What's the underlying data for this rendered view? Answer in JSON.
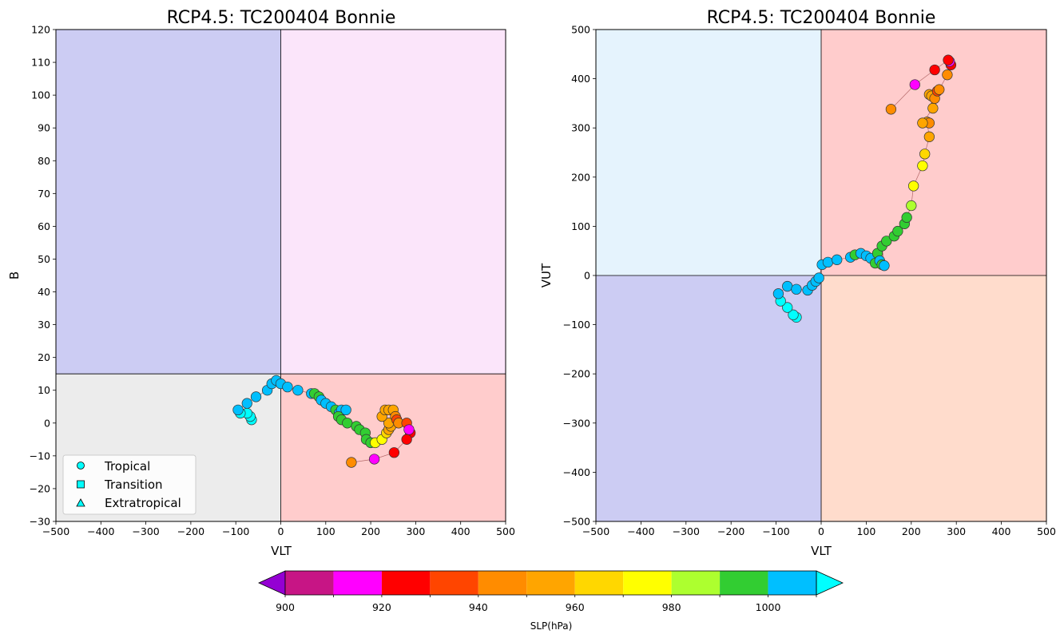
{
  "chart_data": [
    {
      "type": "scatter",
      "title": "RCP4.5: TC200404 Bonnie",
      "xlabel": "VLT",
      "ylabel": "B",
      "xlim": [
        -500,
        500
      ],
      "ylim": [
        -30,
        120
      ],
      "xticks": [
        "−500",
        "−400",
        "−300",
        "−200",
        "−100",
        "0",
        "100",
        "200",
        "300",
        "400",
        "500"
      ],
      "yticks": [
        "−30",
        "−20",
        "−10",
        "0",
        "10",
        "20",
        "30",
        "40",
        "50",
        "60",
        "70",
        "80",
        "90",
        "100",
        "110",
        "120"
      ],
      "threshold_y": 15,
      "quadrant_colors": {
        "upper_left": "#ccccf3",
        "upper_right": "#fbe5fa",
        "lower_left": "#ececec",
        "lower_right": "#ffcccc"
      },
      "legend": {
        "placement": "lower-left",
        "items": [
          {
            "label": "Tropical",
            "marker": "circle"
          },
          {
            "label": "Transition",
            "marker": "square"
          },
          {
            "label": "Extratropical",
            "marker": "triangle"
          }
        ]
      },
      "points": [
        {
          "x": -65,
          "y": 1,
          "slp": 1010
        },
        {
          "x": -68,
          "y": 2,
          "slp": 1010
        },
        {
          "x": -75,
          "y": 3,
          "slp": 1010
        },
        {
          "x": -90,
          "y": 3,
          "slp": 1010
        },
        {
          "x": -95,
          "y": 4,
          "slp": 1005
        },
        {
          "x": -75,
          "y": 6,
          "slp": 1005
        },
        {
          "x": -55,
          "y": 8,
          "slp": 1005
        },
        {
          "x": -30,
          "y": 10,
          "slp": 1005
        },
        {
          "x": -20,
          "y": 12,
          "slp": 1005
        },
        {
          "x": -10,
          "y": 13,
          "slp": 1005
        },
        {
          "x": 0,
          "y": 12,
          "slp": 1005
        },
        {
          "x": 15,
          "y": 11,
          "slp": 1005
        },
        {
          "x": 38,
          "y": 10,
          "slp": 1005
        },
        {
          "x": 68,
          "y": 9,
          "slp": 1005
        },
        {
          "x": 75,
          "y": 9,
          "slp": 995
        },
        {
          "x": 85,
          "y": 8,
          "slp": 995
        },
        {
          "x": 90,
          "y": 7,
          "slp": 1005
        },
        {
          "x": 100,
          "y": 6,
          "slp": 1005
        },
        {
          "x": 112,
          "y": 5,
          "slp": 1005
        },
        {
          "x": 122,
          "y": 4,
          "slp": 995
        },
        {
          "x": 130,
          "y": 3,
          "slp": 1005
        },
        {
          "x": 135,
          "y": 4,
          "slp": 1005
        },
        {
          "x": 145,
          "y": 4,
          "slp": 1005
        },
        {
          "x": 128,
          "y": 2,
          "slp": 995
        },
        {
          "x": 135,
          "y": 1,
          "slp": 995
        },
        {
          "x": 148,
          "y": 0,
          "slp": 995
        },
        {
          "x": 168,
          "y": -1,
          "slp": 995
        },
        {
          "x": 175,
          "y": -2,
          "slp": 995
        },
        {
          "x": 188,
          "y": -3,
          "slp": 995
        },
        {
          "x": 190,
          "y": -5,
          "slp": 995
        },
        {
          "x": 200,
          "y": -6,
          "slp": 995
        },
        {
          "x": 210,
          "y": -6,
          "slp": 975
        },
        {
          "x": 225,
          "y": -5,
          "slp": 975
        },
        {
          "x": 235,
          "y": -3,
          "slp": 965
        },
        {
          "x": 240,
          "y": -2,
          "slp": 955
        },
        {
          "x": 245,
          "y": -1,
          "slp": 955
        },
        {
          "x": 240,
          "y": 0,
          "slp": 955
        },
        {
          "x": 225,
          "y": 2,
          "slp": 955
        },
        {
          "x": 232,
          "y": 4,
          "slp": 955
        },
        {
          "x": 240,
          "y": 4,
          "slp": 955
        },
        {
          "x": 250,
          "y": 4,
          "slp": 955
        },
        {
          "x": 255,
          "y": 2,
          "slp": 945
        },
        {
          "x": 258,
          "y": 1,
          "slp": 935
        },
        {
          "x": 262,
          "y": 0,
          "slp": 945
        },
        {
          "x": 280,
          "y": 0,
          "slp": 935
        },
        {
          "x": 288,
          "y": -3,
          "slp": 925
        },
        {
          "x": 285,
          "y": -2,
          "slp": 915
        },
        {
          "x": 280,
          "y": -5,
          "slp": 925
        },
        {
          "x": 252,
          "y": -9,
          "slp": 925
        },
        {
          "x": 208,
          "y": -11,
          "slp": 915
        },
        {
          "x": 157,
          "y": -12,
          "slp": 945
        }
      ]
    },
    {
      "type": "scatter",
      "title": "RCP4.5: TC200404 Bonnie",
      "xlabel": "VLT",
      "ylabel": "VUT",
      "xlim": [
        -500,
        500
      ],
      "ylim": [
        -500,
        500
      ],
      "xticks": [
        "−500",
        "−400",
        "−300",
        "−200",
        "−100",
        "0",
        "100",
        "200",
        "300",
        "400",
        "500"
      ],
      "yticks": [
        "−500",
        "−400",
        "−300",
        "−200",
        "−100",
        "0",
        "100",
        "200",
        "300",
        "400",
        "500"
      ],
      "quadrant_colors": {
        "upper_left": "#e5f3fd",
        "upper_right": "#ffcccc",
        "lower_left": "#ccccf3",
        "lower_right": "#ffdccc"
      },
      "points": [
        {
          "x": -55,
          "y": -85,
          "slp": 1010
        },
        {
          "x": -62,
          "y": -80,
          "slp": 1010
        },
        {
          "x": -75,
          "y": -65,
          "slp": 1010
        },
        {
          "x": -90,
          "y": -52,
          "slp": 1010
        },
        {
          "x": -95,
          "y": -37,
          "slp": 1005
        },
        {
          "x": -75,
          "y": -22,
          "slp": 1005
        },
        {
          "x": -55,
          "y": -28,
          "slp": 1005
        },
        {
          "x": -30,
          "y": -30,
          "slp": 1005
        },
        {
          "x": -20,
          "y": -20,
          "slp": 1005
        },
        {
          "x": -12,
          "y": -12,
          "slp": 1005
        },
        {
          "x": -5,
          "y": -5,
          "slp": 1005
        },
        {
          "x": 2,
          "y": 22,
          "slp": 1005
        },
        {
          "x": 15,
          "y": 27,
          "slp": 1005
        },
        {
          "x": 35,
          "y": 32,
          "slp": 1005
        },
        {
          "x": 65,
          "y": 37,
          "slp": 1005
        },
        {
          "x": 75,
          "y": 42,
          "slp": 995
        },
        {
          "x": 88,
          "y": 45,
          "slp": 1005
        },
        {
          "x": 100,
          "y": 40,
          "slp": 1005
        },
        {
          "x": 110,
          "y": 35,
          "slp": 1005
        },
        {
          "x": 125,
          "y": 45,
          "slp": 995
        },
        {
          "x": 120,
          "y": 25,
          "slp": 995
        },
        {
          "x": 130,
          "y": 30,
          "slp": 1005
        },
        {
          "x": 135,
          "y": 22,
          "slp": 995
        },
        {
          "x": 140,
          "y": 20,
          "slp": 1005
        },
        {
          "x": 135,
          "y": 60,
          "slp": 995
        },
        {
          "x": 145,
          "y": 70,
          "slp": 995
        },
        {
          "x": 162,
          "y": 80,
          "slp": 995
        },
        {
          "x": 170,
          "y": 90,
          "slp": 995
        },
        {
          "x": 185,
          "y": 105,
          "slp": 995
        },
        {
          "x": 190,
          "y": 118,
          "slp": 995
        },
        {
          "x": 200,
          "y": 142,
          "slp": 985
        },
        {
          "x": 205,
          "y": 182,
          "slp": 975
        },
        {
          "x": 225,
          "y": 223,
          "slp": 975
        },
        {
          "x": 230,
          "y": 247,
          "slp": 965
        },
        {
          "x": 240,
          "y": 282,
          "slp": 955
        },
        {
          "x": 235,
          "y": 312,
          "slp": 955
        },
        {
          "x": 240,
          "y": 310,
          "slp": 945
        },
        {
          "x": 225,
          "y": 310,
          "slp": 955
        },
        {
          "x": 248,
          "y": 340,
          "slp": 955
        },
        {
          "x": 240,
          "y": 368,
          "slp": 955
        },
        {
          "x": 245,
          "y": 365,
          "slp": 955
        },
        {
          "x": 252,
          "y": 360,
          "slp": 945
        },
        {
          "x": 258,
          "y": 375,
          "slp": 935
        },
        {
          "x": 262,
          "y": 378,
          "slp": 945
        },
        {
          "x": 280,
          "y": 408,
          "slp": 945
        },
        {
          "x": 288,
          "y": 428,
          "slp": 925
        },
        {
          "x": 285,
          "y": 435,
          "slp": 915
        },
        {
          "x": 282,
          "y": 438,
          "slp": 925
        },
        {
          "x": 252,
          "y": 418,
          "slp": 925
        },
        {
          "x": 208,
          "y": 388,
          "slp": 915
        },
        {
          "x": 155,
          "y": 338,
          "slp": 945
        }
      ]
    }
  ],
  "colorbar": {
    "label": "SLP(hPa)",
    "levels": [
      900,
      910,
      920,
      930,
      940,
      950,
      960,
      970,
      980,
      990,
      1000,
      1010
    ],
    "tick_labels": [
      "900",
      "920",
      "940",
      "960",
      "980",
      "1000"
    ],
    "colors": [
      "#c71585",
      "#ff00ff",
      "#ff0000",
      "#ff4500",
      "#ff8c00",
      "#ffa500",
      "#ffd700",
      "#ffff00",
      "#adff2f",
      "#32cd32",
      "#00bfff"
    ],
    "under_color": "#9400d3",
    "over_color": "#00ffff"
  }
}
